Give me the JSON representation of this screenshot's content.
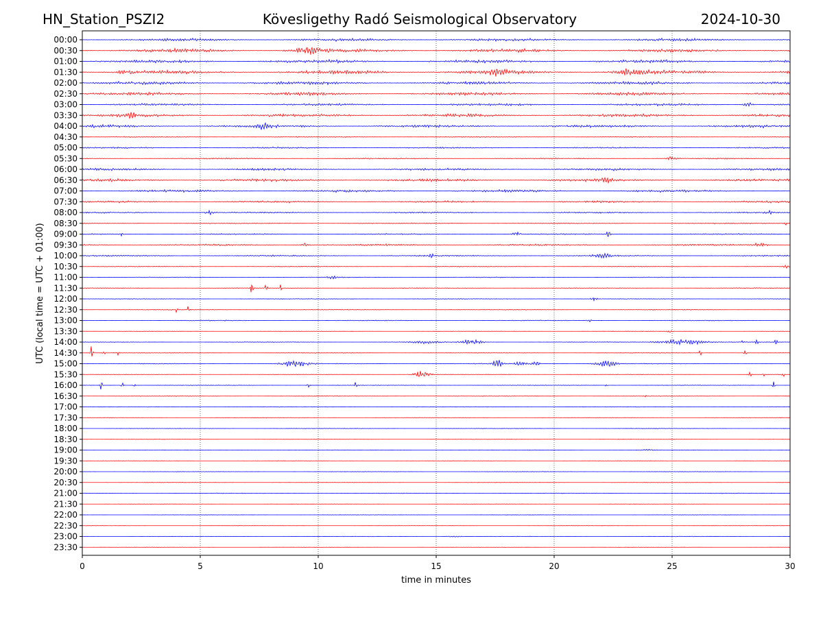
{
  "chart_data": {
    "type": "line",
    "chart_kind": "helicorder / seismogram drum plot",
    "title_left": "HN_Station_PSZI2",
    "title_center": "Kövesligethy Radó Seismological Observatory",
    "title_right": "2024-10-30",
    "xlabel": "time in minutes",
    "ylabel": "UTC (local time = UTC + 01:00)",
    "xlim": [
      0,
      30
    ],
    "x_ticks": [
      0,
      5,
      10,
      15,
      20,
      25,
      30
    ],
    "x_gridlines": [
      5,
      10,
      15,
      20,
      25
    ],
    "grid": "vertical dotted",
    "trace_colors": [
      "#0000ff",
      "#ff0000"
    ],
    "lines": [
      {
        "label": "00:00",
        "noise": 0.7,
        "events": []
      },
      {
        "label": "00:30",
        "noise": 0.9,
        "events": [
          [
            9.5,
            0.6,
            1.5
          ]
        ]
      },
      {
        "label": "01:00",
        "noise": 0.8,
        "events": []
      },
      {
        "label": "01:30",
        "noise": 1.0,
        "events": [
          [
            17.6,
            0.4,
            1.6
          ],
          [
            23.2,
            0.6,
            1.5
          ],
          [
            1.8,
            0.3,
            1.2
          ]
        ]
      },
      {
        "label": "02:00",
        "noise": 0.8,
        "events": []
      },
      {
        "label": "02:30",
        "noise": 0.8,
        "events": []
      },
      {
        "label": "03:00",
        "noise": 0.6,
        "events": [
          [
            28.2,
            0.2,
            1.3
          ]
        ]
      },
      {
        "label": "03:30",
        "noise": 0.8,
        "events": [
          [
            2.1,
            0.2,
            1.5
          ]
        ]
      },
      {
        "label": "04:00",
        "noise": 0.7,
        "events": [
          [
            7.7,
            0.3,
            1.3
          ]
        ]
      },
      {
        "label": "04:30",
        "noise": 0.25,
        "events": []
      },
      {
        "label": "05:00",
        "noise": 0.35,
        "events": []
      },
      {
        "label": "05:30",
        "noise": 0.3,
        "events": [
          [
            25.0,
            0.2,
            1.0
          ]
        ]
      },
      {
        "label": "06:00",
        "noise": 0.6,
        "events": []
      },
      {
        "label": "06:30",
        "noise": 0.7,
        "events": [
          [
            22.2,
            0.2,
            1.2
          ]
        ]
      },
      {
        "label": "07:00",
        "noise": 0.65,
        "events": []
      },
      {
        "label": "07:30",
        "noise": 0.5,
        "events": []
      },
      {
        "label": "08:00",
        "noise": 0.35,
        "events": [
          [
            5.4,
            0.2,
            1.2
          ],
          [
            29.1,
            0.1,
            1.0
          ]
        ]
      },
      {
        "label": "08:30",
        "noise": 0.25,
        "events": [
          [
            29.8,
            0.05,
            1.5
          ]
        ]
      },
      {
        "label": "09:00",
        "noise": 0.3,
        "events": [
          [
            18.4,
            0.15,
            1.5
          ],
          [
            22.3,
            0.08,
            2.0
          ],
          [
            1.7,
            0.1,
            1.0
          ]
        ]
      },
      {
        "label": "09:30",
        "noise": 0.45,
        "events": [
          [
            9.4,
            0.2,
            1.2
          ],
          [
            28.7,
            0.3,
            1.2
          ]
        ]
      },
      {
        "label": "10:00",
        "noise": 0.35,
        "events": [
          [
            14.8,
            0.1,
            1.5
          ],
          [
            22.0,
            0.4,
            1.0
          ]
        ]
      },
      {
        "label": "10:30",
        "noise": 0.2,
        "events": [
          [
            29.8,
            0.1,
            1.2
          ]
        ]
      },
      {
        "label": "11:00",
        "noise": 0.2,
        "events": [
          [
            10.6,
            0.2,
            0.8
          ]
        ]
      },
      {
        "label": "11:30",
        "noise": 0.2,
        "events": [
          [
            7.2,
            0.06,
            4.5
          ],
          [
            7.8,
            0.05,
            3.5
          ],
          [
            8.4,
            0.04,
            2.0
          ]
        ]
      },
      {
        "label": "12:00",
        "noise": 0.15,
        "events": [
          [
            21.7,
            0.15,
            1.0
          ]
        ]
      },
      {
        "label": "12:30",
        "noise": 0.2,
        "events": [
          [
            4.5,
            0.04,
            3.0
          ],
          [
            4.0,
            0.04,
            1.5
          ]
        ]
      },
      {
        "label": "13:00",
        "noise": 0.2,
        "events": [
          [
            21.5,
            0.1,
            0.6
          ]
        ]
      },
      {
        "label": "13:30",
        "noise": 0.1,
        "events": [
          [
            24.9,
            0.1,
            1.0
          ]
        ]
      },
      {
        "label": "14:00",
        "noise": 0.15,
        "events": [
          [
            16.5,
            0.4,
            2.0
          ],
          [
            14.5,
            0.6,
            0.8
          ],
          [
            25.5,
            1.0,
            1.6
          ],
          [
            28.6,
            0.05,
            3.5
          ],
          [
            29.4,
            0.05,
            2.5
          ],
          [
            28.0,
            0.05,
            2.0
          ]
        ]
      },
      {
        "label": "14:30",
        "noise": 0.15,
        "events": [
          [
            0.4,
            0.05,
            4.5
          ],
          [
            0.9,
            0.05,
            3.0
          ],
          [
            1.5,
            0.05,
            2.2
          ],
          [
            26.2,
            0.05,
            2.0
          ],
          [
            28.1,
            0.05,
            1.5
          ]
        ]
      },
      {
        "label": "15:00",
        "noise": 0.2,
        "events": [
          [
            9.0,
            0.55,
            1.8
          ],
          [
            17.6,
            0.2,
            2.8
          ],
          [
            18.6,
            0.2,
            2.2
          ],
          [
            19.2,
            0.15,
            1.8
          ],
          [
            22.2,
            0.45,
            1.6
          ]
        ]
      },
      {
        "label": "15:30",
        "noise": 0.1,
        "events": [
          [
            14.4,
            0.35,
            2.0
          ],
          [
            28.3,
            0.05,
            1.8
          ],
          [
            29.7,
            0.05,
            1.8
          ],
          [
            28.9,
            0.05,
            1.2
          ]
        ]
      },
      {
        "label": "16:00",
        "noise": 0.15,
        "events": [
          [
            0.8,
            0.05,
            3.0
          ],
          [
            1.7,
            0.05,
            2.8
          ],
          [
            2.2,
            0.05,
            1.5
          ],
          [
            9.6,
            0.05,
            2.5
          ],
          [
            11.6,
            0.05,
            2.8
          ],
          [
            29.3,
            0.05,
            2.0
          ],
          [
            22.2,
            0.05,
            1.0
          ]
        ]
      },
      {
        "label": "16:30",
        "noise": 0.15,
        "events": [
          [
            23.9,
            0.05,
            0.6
          ]
        ]
      },
      {
        "label": "17:00",
        "noise": 0.15,
        "events": []
      },
      {
        "label": "17:30",
        "noise": 0.1,
        "events": []
      },
      {
        "label": "18:00",
        "noise": 0.12,
        "events": []
      },
      {
        "label": "18:30",
        "noise": 0.08,
        "events": []
      },
      {
        "label": "19:00",
        "noise": 0.12,
        "events": [
          [
            24.0,
            0.3,
            0.4
          ]
        ]
      },
      {
        "label": "19:30",
        "noise": 0.08,
        "events": []
      },
      {
        "label": "20:00",
        "noise": 0.1,
        "events": []
      },
      {
        "label": "20:30",
        "noise": 0.08,
        "events": []
      },
      {
        "label": "21:00",
        "noise": 0.15,
        "events": []
      },
      {
        "label": "21:30",
        "noise": 0.08,
        "events": []
      },
      {
        "label": "22:00",
        "noise": 0.1,
        "events": []
      },
      {
        "label": "22:30",
        "noise": 0.08,
        "events": []
      },
      {
        "label": "23:00",
        "noise": 0.12,
        "events": [
          [
            15.8,
            0.3,
            0.4
          ]
        ]
      },
      {
        "label": "23:30",
        "noise": 0.08,
        "events": []
      }
    ]
  }
}
